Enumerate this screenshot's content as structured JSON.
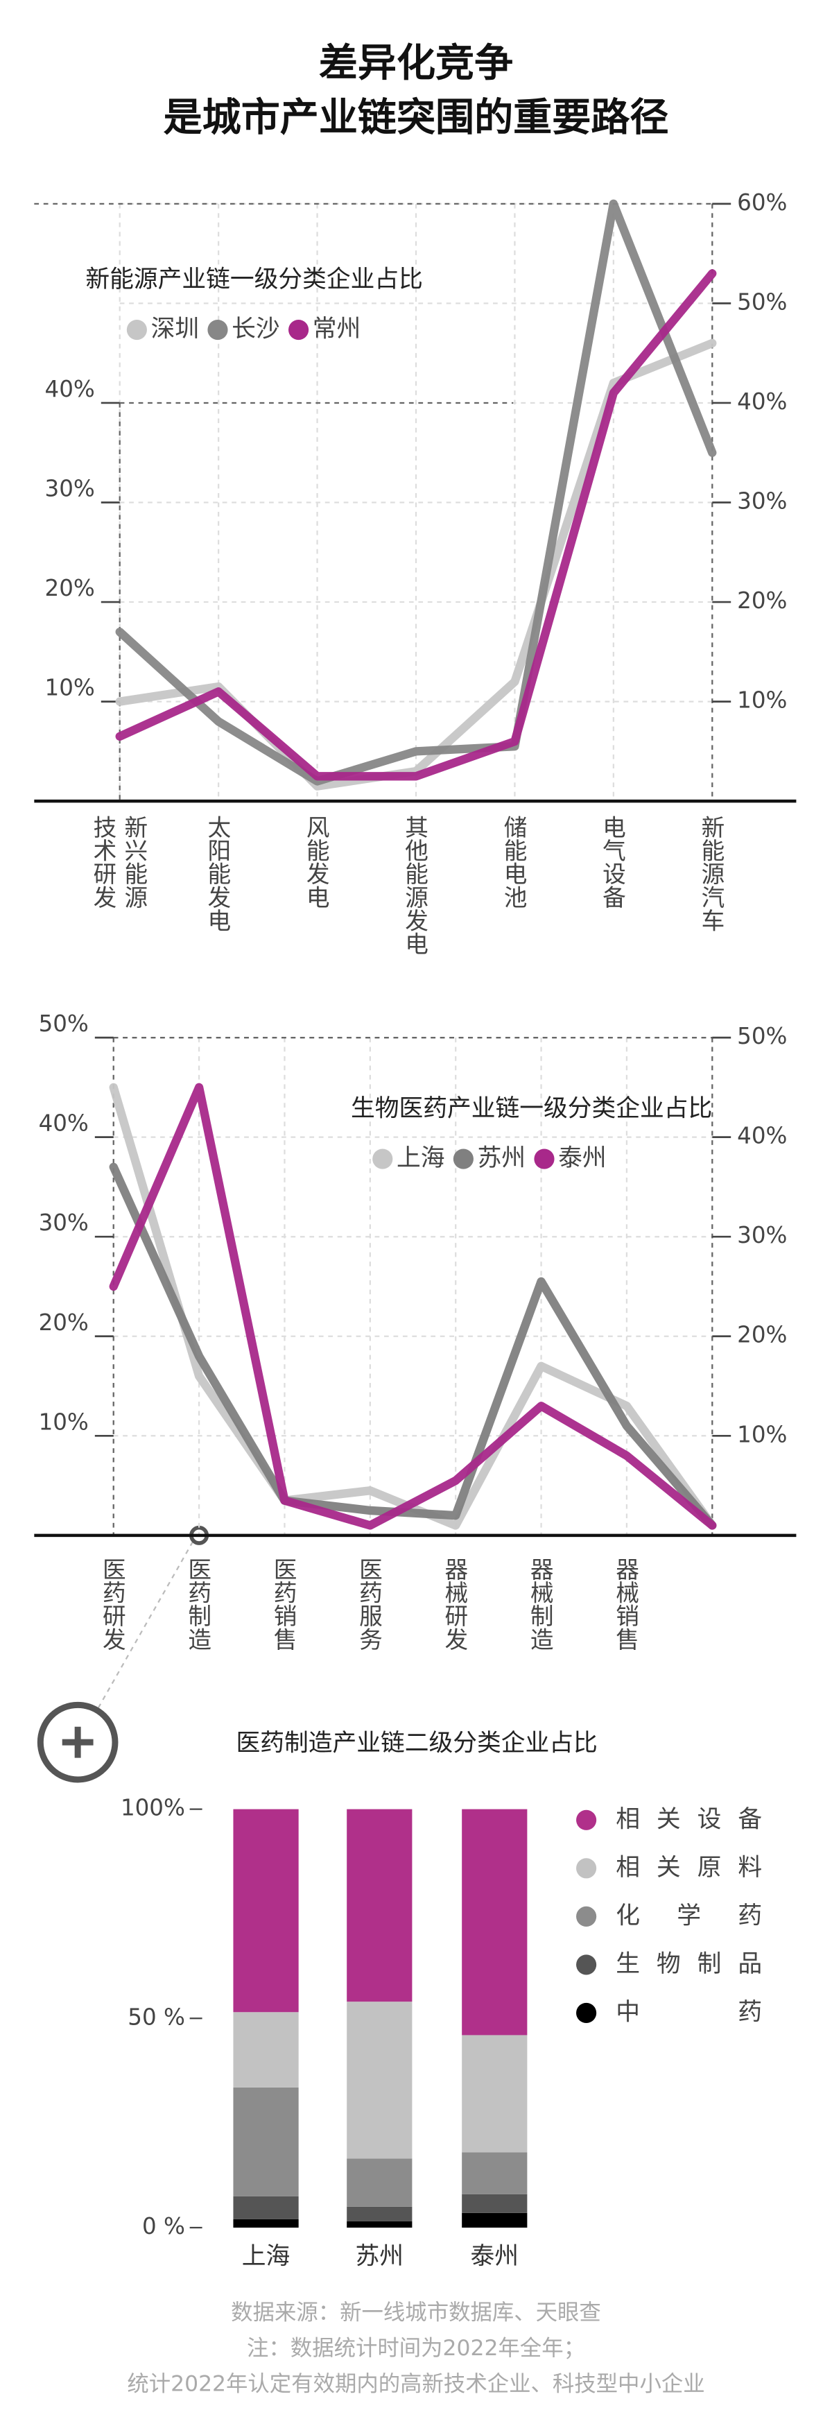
{
  "title": [
    "差异化竞争",
    "是城市产业链突围的重要路径"
  ],
  "chart_data": [
    {
      "type": "line",
      "title": "新能源产业链一级分类企业占比",
      "categories": [
        "新兴能源技术研发",
        "太阳能发电",
        "风能发电",
        "其他能源发电",
        "储能电池",
        "电气设备",
        "新能源汽车"
      ],
      "series": [
        {
          "name": "深圳",
          "color": "#c6c6c6",
          "values": [
            10,
            11.5,
            1.5,
            3,
            12,
            42,
            46
          ]
        },
        {
          "name": "长沙",
          "color": "#878787",
          "values": [
            17,
            8,
            2,
            5,
            5.5,
            60,
            35
          ]
        },
        {
          "name": "常州",
          "color": "#a8288a",
          "values": [
            6.5,
            11,
            2.5,
            2.5,
            6,
            41,
            53
          ]
        }
      ],
      "ylim": [
        0,
        60
      ],
      "yticks": [
        {
          "value": 10,
          "label": "10%"
        },
        {
          "value": 20,
          "label": "20%"
        },
        {
          "value": 30,
          "label": "30%"
        },
        {
          "value": 40,
          "label": "40%"
        }
      ],
      "y2lim": [
        0,
        60
      ],
      "y2ticks": [
        {
          "value": 10,
          "label": "10%"
        },
        {
          "value": 20,
          "label": "20%"
        },
        {
          "value": 30,
          "label": "30%"
        },
        {
          "value": 40,
          "label": "40%"
        },
        {
          "value": 50,
          "label": "50%"
        },
        {
          "value": 60,
          "label": "60%"
        }
      ],
      "grid": true
    },
    {
      "type": "line",
      "title": "生物医药产业链一级分类企业占比",
      "categories": [
        "医药研发",
        "医药制造",
        "医药销售",
        "医药服务",
        "器械研发",
        "器械制造",
        "器械销售",
        null
      ],
      "series": [
        {
          "name": "上海",
          "color": "#c6c6c6",
          "values": [
            45,
            16,
            3.5,
            4.5,
            1,
            17,
            13,
            1
          ]
        },
        {
          "name": "苏州",
          "color": "#808080",
          "values": [
            37,
            18,
            3.5,
            2.5,
            2,
            25.5,
            11,
            1
          ]
        },
        {
          "name": "泰州",
          "color": "#a8288a",
          "values": [
            25,
            45,
            3.5,
            1,
            5.5,
            13,
            8,
            1
          ]
        }
      ],
      "ylim": [
        0,
        50
      ],
      "yticks": [
        {
          "value": 10,
          "label": "10%"
        },
        {
          "value": 20,
          "label": "20%"
        },
        {
          "value": 30,
          "label": "30%"
        },
        {
          "value": 40,
          "label": "40%"
        },
        {
          "value": 50,
          "label": "50%"
        }
      ],
      "y2lim": [
        0,
        50
      ],
      "y2ticks": [
        {
          "value": 10,
          "label": "10%"
        },
        {
          "value": 20,
          "label": "20%"
        },
        {
          "value": 30,
          "label": "30%"
        },
        {
          "value": 40,
          "label": "40%"
        },
        {
          "value": 50,
          "label": "50%"
        }
      ],
      "grid": true
    },
    {
      "type": "stacked_bar",
      "title": "医药制造产业链二级分类企业占比",
      "categories": [
        "上海",
        "苏州",
        "泰州"
      ],
      "series": [
        {
          "name": "中药",
          "color": "#000000",
          "values": [
            2,
            1.5,
            3.5
          ]
        },
        {
          "name": "生物制品",
          "color": "#555555",
          "values": [
            5.5,
            3.5,
            4.5
          ]
        },
        {
          "name": "化学药",
          "color": "#8c8c8c",
          "values": [
            26,
            11.5,
            10
          ]
        },
        {
          "name": "相关原料",
          "color": "#c2c2c2",
          "values": [
            18,
            37.5,
            28
          ]
        },
        {
          "name": "相关设备",
          "color": "#b0308a",
          "values": [
            48.5,
            46,
            54
          ]
        }
      ],
      "ylim": [
        0,
        100
      ],
      "yticks": [
        {
          "value": 0,
          "label": "0 %"
        },
        {
          "value": 50,
          "label": "50 %"
        },
        {
          "value": 100,
          "label": "100%"
        }
      ]
    }
  ],
  "footer": [
    "数据来源：新一线城市数据库、天眼查",
    "注：数据统计时间为2022年全年；",
    "统计2022年认定有效期内的高新技术企业、科技型中小企业"
  ]
}
